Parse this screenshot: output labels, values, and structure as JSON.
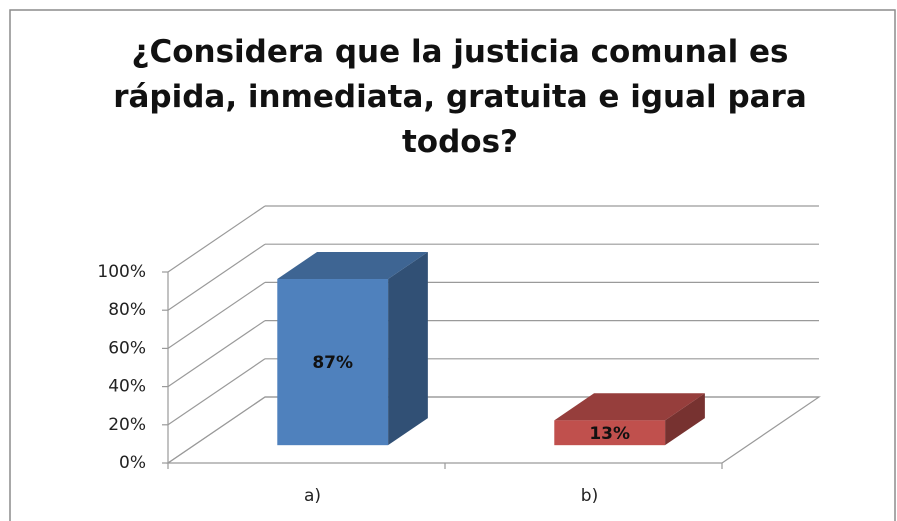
{
  "chart_data": {
    "type": "bar3d",
    "title": "¿Considera que la justicia comunal es rápida, inmediata, gratuita e igual para todos?",
    "categories": [
      "a)",
      "b)"
    ],
    "values": [
      87,
      13
    ],
    "value_labels": [
      "87%",
      "13%"
    ],
    "colors": [
      "#4f81bd",
      "#c0504d"
    ],
    "ylim": [
      0,
      100
    ],
    "yticks": [
      {
        "value": 0,
        "label": "0%"
      },
      {
        "value": 20,
        "label": "20%"
      },
      {
        "value": 40,
        "label": "40%"
      },
      {
        "value": 60,
        "label": "60%"
      },
      {
        "value": 80,
        "label": "80%"
      },
      {
        "value": 100,
        "label": "100%"
      }
    ],
    "grid": true
  }
}
